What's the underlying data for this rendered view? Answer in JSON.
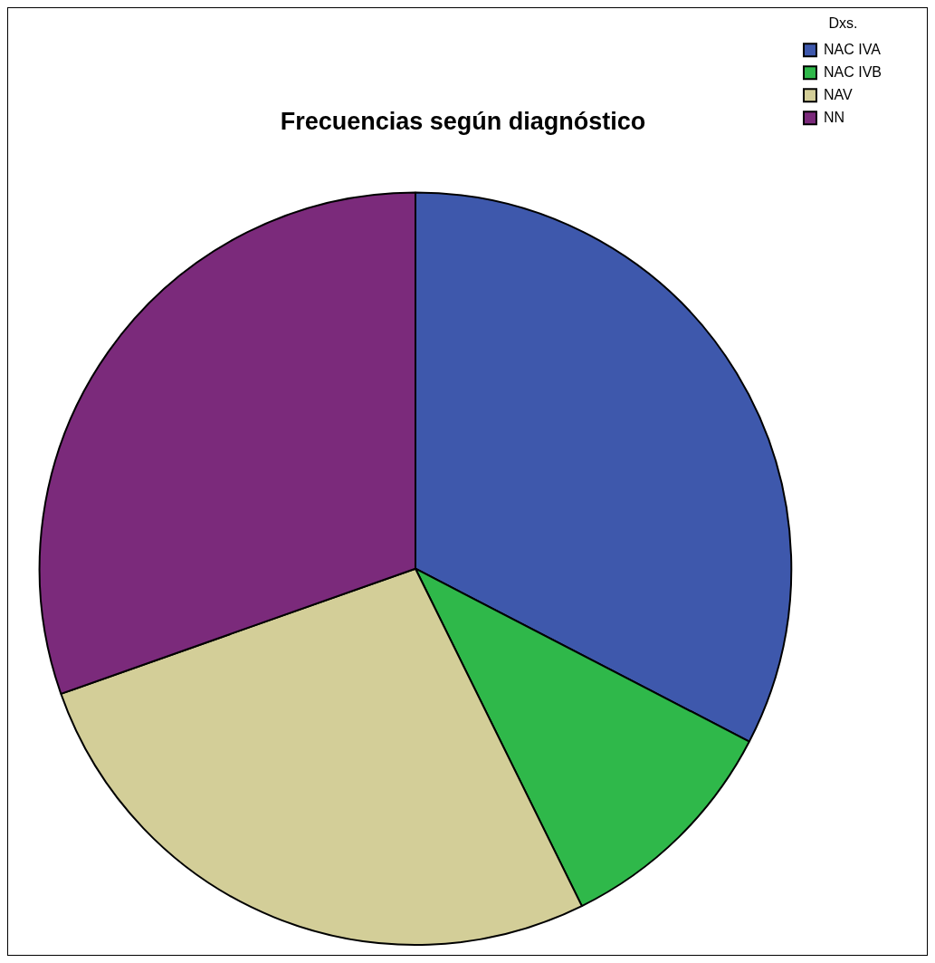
{
  "chart_data": {
    "type": "pie",
    "title": "Frecuencias según diagnóstico",
    "legend_title": "Dxs.",
    "legend": "top right",
    "categories": [
      "NAC IVA",
      "NAC IVB",
      "NAV",
      "NN"
    ],
    "values": [
      32.6,
      10.1,
      26.9,
      30.4
    ],
    "colors": [
      "#3e58ac",
      "#2fb84a",
      "#d3ce98",
      "#7b2a7b"
    ]
  }
}
